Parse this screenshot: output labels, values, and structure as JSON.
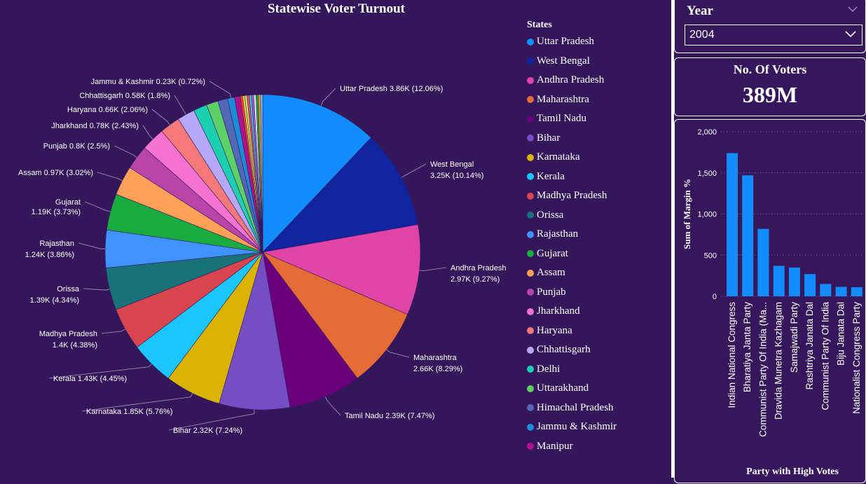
{
  "pie": {
    "title": "Statewise Voter Turnout",
    "legend_title": "States"
  },
  "slicer": {
    "title": "Year",
    "selected": "2004",
    "chevron_icon": "chevron-down-icon"
  },
  "kpi": {
    "title": "No. Of Voters",
    "value": "389M"
  },
  "chart_data": [
    {
      "type": "pie",
      "title": "Statewise Voter Turnout",
      "legend_title": "States",
      "legend_position": "right",
      "slices": [
        {
          "name": "Uttar Pradesh",
          "label": "Uttar Pradesh 3.86K (12.06%)",
          "value": 3860,
          "percent": 12.06,
          "color": "#118dff"
        },
        {
          "name": "West Bengal",
          "label": "West Bengal 3.25K (10.14%)",
          "value": 3250,
          "percent": 10.14,
          "color": "#12239e"
        },
        {
          "name": "Andhra Pradesh",
          "label": "Andhra Pradesh 2.97K (9.27%)",
          "value": 2970,
          "percent": 9.27,
          "color": "#e044a7"
        },
        {
          "name": "Maharashtra",
          "label": "Maharashtra 2.66K (8.29%)",
          "value": 2660,
          "percent": 8.29,
          "color": "#e66c37"
        },
        {
          "name": "Tamil Nadu",
          "label": "Tamil Nadu 2.39K (7.47%)",
          "value": 2390,
          "percent": 7.47,
          "color": "#6b007b"
        },
        {
          "name": "Bihar",
          "label": "Bihar 2.32K (7.24%)",
          "value": 2320,
          "percent": 7.24,
          "color": "#744ec2"
        },
        {
          "name": "Karnataka",
          "label": "Karnataka 1.85K (5.76%)",
          "value": 1850,
          "percent": 5.76,
          "color": "#d9b300"
        },
        {
          "name": "Kerala",
          "label": "Kerala 1.43K (4.45%)",
          "value": 1430,
          "percent": 4.45,
          "color": "#1ac6ff"
        },
        {
          "name": "Madhya Pradesh",
          "label": "Madhya Pradesh 1.4K (4.38%)",
          "value": 1400,
          "percent": 4.38,
          "color": "#d64550"
        },
        {
          "name": "Orissa",
          "label": "Orissa 1.39K (4.34%)",
          "value": 1390,
          "percent": 4.34,
          "color": "#197278"
        },
        {
          "name": "Rajasthan",
          "label": "Rajasthan 1.24K (3.86%)",
          "value": 1240,
          "percent": 3.86,
          "color": "#4092ff"
        },
        {
          "name": "Gujarat",
          "label": "Gujarat 1.19K (3.73%)",
          "value": 1190,
          "percent": 3.73,
          "color": "#1aab40"
        },
        {
          "name": "Assam",
          "label": "Assam 0.97K (3.02%)",
          "value": 970,
          "percent": 3.02,
          "color": "#ffa058"
        },
        {
          "name": "Punjab",
          "label": "Punjab 0.8K (2.5%)",
          "value": 800,
          "percent": 2.5,
          "color": "#b845a7"
        },
        {
          "name": "Jharkhand",
          "label": "Jharkhand 0.78K (2.43%)",
          "value": 780,
          "percent": 2.43,
          "color": "#f472d0"
        },
        {
          "name": "Haryana",
          "label": "Haryana 0.66K (2.06%)",
          "value": 660,
          "percent": 2.06,
          "color": "#f5797a"
        },
        {
          "name": "Chhattisgarh",
          "label": "Chhattisgarh 0.58K (1.8%)",
          "value": 580,
          "percent": 1.8,
          "color": "#b7a7f7"
        },
        {
          "name": "Delhi",
          "label": "",
          "value": 450,
          "percent": 1.4,
          "color": "#1ad0b0"
        },
        {
          "name": "Uttarakhand",
          "label": "",
          "value": 380,
          "percent": 1.2,
          "color": "#5dd068"
        },
        {
          "name": "Himachal Pradesh",
          "label": "",
          "value": 330,
          "percent": 1.0,
          "color": "#5267b5"
        },
        {
          "name": "Jammu & Kashmir",
          "label": "Jammu & Kashmir 0.23K (0.72%)",
          "value": 230,
          "percent": 0.72,
          "color": "#1c8bd8"
        },
        {
          "name": "Manipur",
          "label": "",
          "value": 200,
          "percent": 0.6,
          "color": "#b0128c"
        }
      ],
      "minor_slice_colors": [
        "#ff4a1a",
        "#ffcc4d",
        "#c4ef5e",
        "#f54d63",
        "#43c6db",
        "#9a64d6",
        "#e8e8e8",
        "#1aab40",
        "#ff9e1a",
        "#6fc0ff"
      ]
    },
    {
      "type": "bar",
      "title": "Party with High Votes",
      "xlabel": "Party with High Votes",
      "ylabel": "Sum of Margin %",
      "ylim": [
        0,
        2000
      ],
      "yticks": [
        "0",
        "500",
        "1,000",
        "1,500",
        "2,000"
      ],
      "ytick_values": [
        0,
        500,
        1000,
        1500,
        2000
      ],
      "grid": true,
      "bar_color": "#118dff",
      "categories": [
        "Indian National Congress",
        "Bharatiya Janta Party",
        "Communist Party Of India (Ma...",
        "Dravida Munetra Kazhagam",
        "Samajwadi Party",
        "Rashtriya Janata Dal",
        "Communist Party Of India",
        "Biju Janata Dal",
        "Nationalist Congress Party"
      ],
      "values": [
        1740,
        1470,
        820,
        370,
        350,
        270,
        150,
        115,
        110
      ]
    }
  ]
}
